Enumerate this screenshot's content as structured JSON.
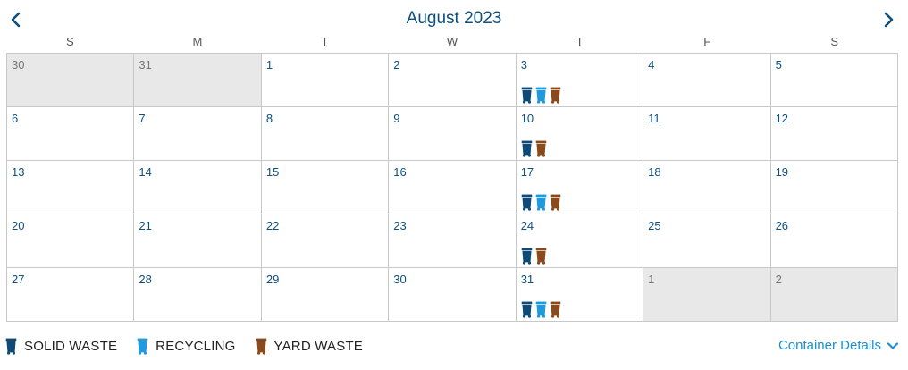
{
  "header": {
    "title": "August 2023",
    "prev_icon": "chevron-left-icon",
    "next_icon": "chevron-right-icon"
  },
  "weekdays": [
    "S",
    "M",
    "T",
    "W",
    "T",
    "F",
    "S"
  ],
  "colors": {
    "solid_waste": "#0d4a78",
    "recycling": "#1e9be0",
    "yard_waste": "#8b4a1c",
    "day_text": "#0d4f7d",
    "other_month_bg": "#e8e8e8",
    "link": "#1c8fd0"
  },
  "days": [
    {
      "label": "30",
      "other": true,
      "bins": []
    },
    {
      "label": "31",
      "other": true,
      "bins": []
    },
    {
      "label": "1",
      "other": false,
      "bins": []
    },
    {
      "label": "2",
      "other": false,
      "bins": []
    },
    {
      "label": "3",
      "other": false,
      "bins": [
        "solid_waste",
        "recycling",
        "yard_waste"
      ]
    },
    {
      "label": "4",
      "other": false,
      "bins": []
    },
    {
      "label": "5",
      "other": false,
      "bins": []
    },
    {
      "label": "6",
      "other": false,
      "bins": []
    },
    {
      "label": "7",
      "other": false,
      "bins": []
    },
    {
      "label": "8",
      "other": false,
      "bins": []
    },
    {
      "label": "9",
      "other": false,
      "bins": []
    },
    {
      "label": "10",
      "other": false,
      "bins": [
        "solid_waste",
        "yard_waste"
      ]
    },
    {
      "label": "11",
      "other": false,
      "bins": []
    },
    {
      "label": "12",
      "other": false,
      "bins": []
    },
    {
      "label": "13",
      "other": false,
      "bins": []
    },
    {
      "label": "14",
      "other": false,
      "bins": []
    },
    {
      "label": "15",
      "other": false,
      "bins": []
    },
    {
      "label": "16",
      "other": false,
      "bins": []
    },
    {
      "label": "17",
      "other": false,
      "bins": [
        "solid_waste",
        "recycling",
        "yard_waste"
      ]
    },
    {
      "label": "18",
      "other": false,
      "bins": []
    },
    {
      "label": "19",
      "other": false,
      "bins": []
    },
    {
      "label": "20",
      "other": false,
      "bins": []
    },
    {
      "label": "21",
      "other": false,
      "bins": []
    },
    {
      "label": "22",
      "other": false,
      "bins": []
    },
    {
      "label": "23",
      "other": false,
      "bins": []
    },
    {
      "label": "24",
      "other": false,
      "bins": [
        "solid_waste",
        "yard_waste"
      ]
    },
    {
      "label": "25",
      "other": false,
      "bins": []
    },
    {
      "label": "26",
      "other": false,
      "bins": []
    },
    {
      "label": "27",
      "other": false,
      "bins": []
    },
    {
      "label": "28",
      "other": false,
      "bins": []
    },
    {
      "label": "29",
      "other": false,
      "bins": []
    },
    {
      "label": "30",
      "other": false,
      "bins": []
    },
    {
      "label": "31",
      "other": false,
      "bins": [
        "solid_waste",
        "recycling",
        "yard_waste"
      ]
    },
    {
      "label": "1",
      "other": true,
      "bins": []
    },
    {
      "label": "2",
      "other": true,
      "bins": []
    }
  ],
  "legend": [
    {
      "key": "solid_waste",
      "label": "SOLID WASTE",
      "icon": "solid-waste-bin-icon"
    },
    {
      "key": "recycling",
      "label": "RECYCLING",
      "icon": "recycling-bin-icon"
    },
    {
      "key": "yard_waste",
      "label": "YARD WASTE",
      "icon": "yard-waste-bin-icon"
    }
  ],
  "footer": {
    "details_label": "Container Details",
    "details_icon": "chevron-down-icon"
  }
}
